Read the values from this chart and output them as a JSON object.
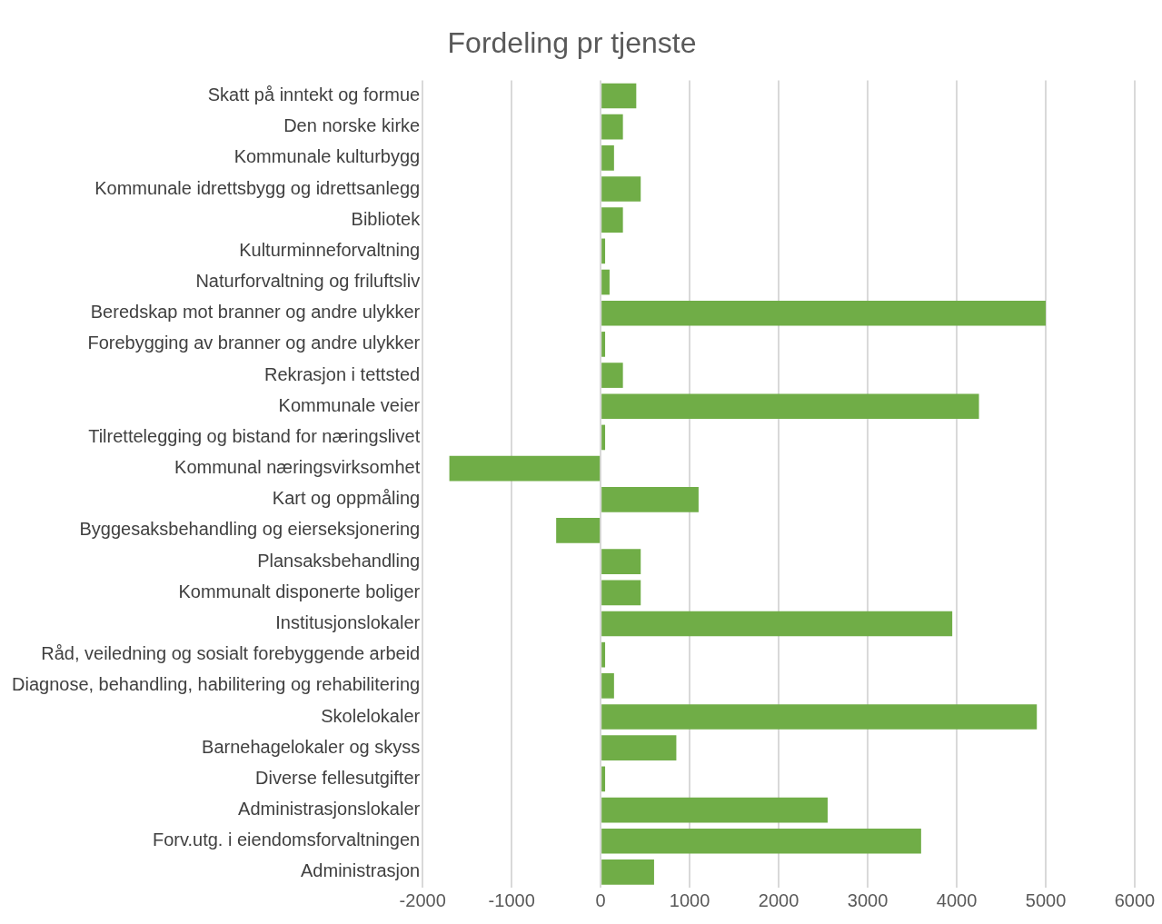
{
  "chart_data": {
    "type": "bar",
    "orientation": "horizontal",
    "title": "Fordeling pr tjenste",
    "categories": [
      "Skatt på inntekt og formue",
      "Den norske kirke",
      "Kommunale kulturbygg",
      "Kommunale idrettsbygg og idrettsanlegg",
      "Bibliotek",
      "Kulturminneforvaltning",
      "Naturforvaltning og friluftsliv",
      "Beredskap mot branner og andre ulykker",
      "Forebygging av branner og andre ulykker",
      "Rekrasjon i tettsted",
      "Kommunale veier",
      "Tilrettelegging og bistand for næringslivet",
      "Kommunal næringsvirksomhet",
      "Kart og oppmåling",
      "Byggesaksbehandling og eierseksjonering",
      "Plansaksbehandling",
      "Kommunalt disponerte boliger",
      "Institusjonslokaler",
      "Råd, veiledning og sosialt forebyggende arbeid",
      "Diagnose, behandling, habilitering og rehabilitering",
      "Skolelokaler",
      "Barnehagelokaler og skyss",
      "Diverse fellesutgifter",
      "Administrasjonslokaler",
      "Forv.utg. i eiendomsforvaltningen",
      "Administrasjon"
    ],
    "values": [
      400,
      250,
      150,
      450,
      250,
      50,
      100,
      5000,
      50,
      250,
      4250,
      50,
      -1700,
      1100,
      -500,
      450,
      450,
      3950,
      50,
      150,
      4900,
      850,
      50,
      2550,
      3600,
      600
    ],
    "color": "#70ad47",
    "xlim": [
      -2000,
      6000
    ],
    "xticks": [
      -2000,
      -1000,
      0,
      1000,
      2000,
      3000,
      4000,
      5000,
      6000
    ],
    "grid": "x",
    "legend": false
  }
}
